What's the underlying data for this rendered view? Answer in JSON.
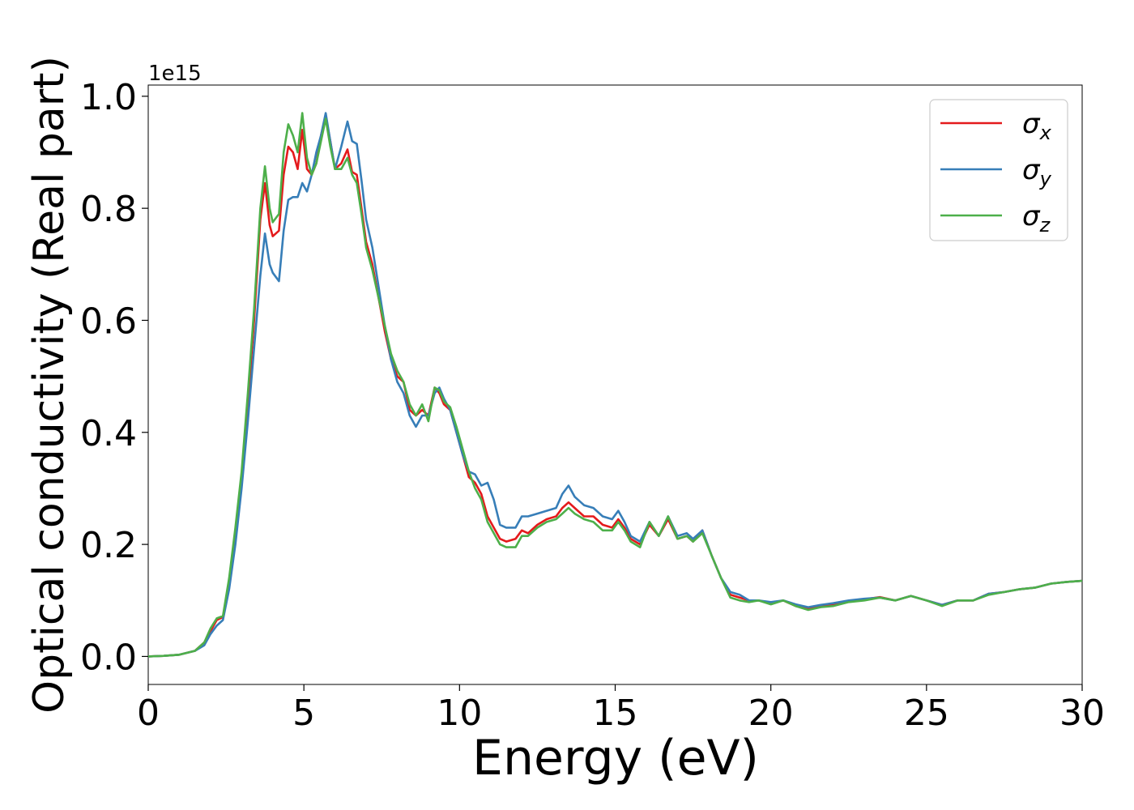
{
  "chart_data": {
    "type": "line",
    "xlabel": "Energy (eV)",
    "ylabel": "Optical conductivity (Real part)",
    "y_offset_text": "1e15",
    "xlim": [
      0,
      30
    ],
    "ylim": [
      -0.05,
      1.02
    ],
    "x_ticks": [
      0,
      5,
      10,
      15,
      20,
      25,
      30
    ],
    "y_ticks": [
      0.0,
      0.2,
      0.4,
      0.6,
      0.8,
      1.0
    ],
    "x_tick_labels": [
      "0",
      "5",
      "10",
      "15",
      "20",
      "25",
      "30"
    ],
    "y_tick_labels": [
      "0.0",
      "0.2",
      "0.4",
      "0.6",
      "0.8",
      "1.0"
    ],
    "legend_position": "top-right",
    "series": [
      {
        "name": "σx",
        "sub": "x",
        "color": "#e41a1c",
        "x": [
          0,
          0.5,
          1.0,
          1.5,
          1.8,
          2.0,
          2.2,
          2.4,
          2.6,
          2.8,
          3.0,
          3.2,
          3.4,
          3.6,
          3.75,
          3.9,
          4.0,
          4.2,
          4.35,
          4.5,
          4.65,
          4.8,
          4.95,
          5.1,
          5.25,
          5.4,
          5.55,
          5.7,
          5.85,
          6.0,
          6.2,
          6.4,
          6.55,
          6.7,
          6.85,
          7.0,
          7.2,
          7.4,
          7.6,
          7.8,
          8.0,
          8.2,
          8.4,
          8.6,
          8.8,
          9.0,
          9.2,
          9.35,
          9.5,
          9.7,
          9.9,
          10.1,
          10.3,
          10.5,
          10.7,
          10.9,
          11.1,
          11.3,
          11.5,
          11.8,
          12.0,
          12.2,
          12.5,
          12.8,
          13.1,
          13.3,
          13.5,
          13.7,
          14.0,
          14.3,
          14.6,
          14.9,
          15.1,
          15.3,
          15.5,
          15.8,
          16.1,
          16.4,
          16.7,
          17.0,
          17.3,
          17.5,
          17.8,
          18.1,
          18.4,
          18.7,
          19.0,
          19.3,
          19.6,
          20.0,
          20.4,
          20.8,
          21.2,
          21.6,
          22.0,
          22.5,
          23.0,
          23.5,
          24.0,
          24.5,
          25.0,
          25.5,
          26.0,
          26.5,
          27.0,
          27.5,
          28.0,
          28.5,
          29.0,
          29.5,
          30.0
        ],
        "y": [
          0.0,
          0.001,
          0.003,
          0.01,
          0.025,
          0.045,
          0.065,
          0.07,
          0.13,
          0.22,
          0.32,
          0.45,
          0.6,
          0.78,
          0.845,
          0.77,
          0.75,
          0.76,
          0.86,
          0.91,
          0.9,
          0.87,
          0.94,
          0.87,
          0.86,
          0.88,
          0.93,
          0.965,
          0.92,
          0.87,
          0.88,
          0.905,
          0.865,
          0.86,
          0.8,
          0.74,
          0.7,
          0.64,
          0.58,
          0.53,
          0.5,
          0.49,
          0.44,
          0.43,
          0.44,
          0.43,
          0.48,
          0.47,
          0.45,
          0.44,
          0.4,
          0.36,
          0.32,
          0.31,
          0.29,
          0.25,
          0.23,
          0.21,
          0.205,
          0.21,
          0.225,
          0.22,
          0.235,
          0.245,
          0.25,
          0.265,
          0.275,
          0.265,
          0.25,
          0.25,
          0.235,
          0.23,
          0.245,
          0.23,
          0.21,
          0.2,
          0.235,
          0.215,
          0.245,
          0.21,
          0.215,
          0.205,
          0.225,
          0.18,
          0.14,
          0.11,
          0.105,
          0.1,
          0.1,
          0.095,
          0.1,
          0.09,
          0.085,
          0.09,
          0.092,
          0.098,
          0.102,
          0.106,
          0.1,
          0.108,
          0.1,
          0.092,
          0.1,
          0.1,
          0.112,
          0.115,
          0.12,
          0.123,
          0.13,
          0.133,
          0.135
        ]
      },
      {
        "name": "σy",
        "sub": "y",
        "color": "#377eb8",
        "x": [
          0,
          0.5,
          1.0,
          1.5,
          1.8,
          2.0,
          2.2,
          2.4,
          2.6,
          2.8,
          3.0,
          3.2,
          3.4,
          3.6,
          3.75,
          3.9,
          4.0,
          4.2,
          4.35,
          4.5,
          4.65,
          4.8,
          4.95,
          5.1,
          5.25,
          5.4,
          5.55,
          5.7,
          5.85,
          6.0,
          6.2,
          6.4,
          6.55,
          6.7,
          6.85,
          7.0,
          7.2,
          7.4,
          7.6,
          7.8,
          8.0,
          8.2,
          8.4,
          8.6,
          8.8,
          9.0,
          9.2,
          9.35,
          9.5,
          9.7,
          9.9,
          10.1,
          10.3,
          10.5,
          10.7,
          10.9,
          11.1,
          11.3,
          11.5,
          11.8,
          12.0,
          12.2,
          12.5,
          12.8,
          13.1,
          13.3,
          13.5,
          13.7,
          14.0,
          14.3,
          14.6,
          14.9,
          15.1,
          15.3,
          15.5,
          15.8,
          16.1,
          16.4,
          16.7,
          17.0,
          17.3,
          17.5,
          17.8,
          18.1,
          18.4,
          18.7,
          19.0,
          19.3,
          19.6,
          20.0,
          20.4,
          20.8,
          21.2,
          21.6,
          22.0,
          22.5,
          23.0,
          23.5,
          24.0,
          24.5,
          25.0,
          25.5,
          26.0,
          26.5,
          27.0,
          27.5,
          28.0,
          28.5,
          29.0,
          29.5,
          30.0
        ],
        "y": [
          0.0,
          0.001,
          0.003,
          0.01,
          0.02,
          0.04,
          0.055,
          0.065,
          0.12,
          0.2,
          0.3,
          0.42,
          0.55,
          0.68,
          0.755,
          0.7,
          0.685,
          0.67,
          0.76,
          0.815,
          0.82,
          0.82,
          0.845,
          0.83,
          0.86,
          0.9,
          0.93,
          0.97,
          0.92,
          0.87,
          0.91,
          0.955,
          0.92,
          0.915,
          0.85,
          0.78,
          0.73,
          0.66,
          0.59,
          0.53,
          0.49,
          0.47,
          0.43,
          0.41,
          0.43,
          0.43,
          0.47,
          0.48,
          0.46,
          0.44,
          0.4,
          0.36,
          0.33,
          0.325,
          0.305,
          0.31,
          0.28,
          0.235,
          0.23,
          0.23,
          0.25,
          0.25,
          0.255,
          0.26,
          0.265,
          0.29,
          0.305,
          0.285,
          0.27,
          0.265,
          0.25,
          0.245,
          0.26,
          0.24,
          0.215,
          0.205,
          0.24,
          0.215,
          0.25,
          0.215,
          0.22,
          0.21,
          0.225,
          0.18,
          0.14,
          0.115,
          0.11,
          0.1,
          0.1,
          0.097,
          0.1,
          0.093,
          0.088,
          0.092,
          0.095,
          0.1,
          0.103,
          0.105,
          0.1,
          0.108,
          0.1,
          0.092,
          0.1,
          0.1,
          0.112,
          0.115,
          0.12,
          0.123,
          0.13,
          0.133,
          0.135
        ]
      },
      {
        "name": "σz",
        "sub": "z",
        "color": "#4daf4a",
        "x": [
          0,
          0.5,
          1.0,
          1.5,
          1.8,
          2.0,
          2.2,
          2.4,
          2.6,
          2.8,
          3.0,
          3.2,
          3.4,
          3.6,
          3.75,
          3.9,
          4.0,
          4.2,
          4.35,
          4.5,
          4.65,
          4.8,
          4.95,
          5.1,
          5.25,
          5.4,
          5.55,
          5.7,
          5.85,
          6.0,
          6.2,
          6.4,
          6.55,
          6.7,
          6.85,
          7.0,
          7.2,
          7.4,
          7.6,
          7.8,
          8.0,
          8.2,
          8.4,
          8.6,
          8.8,
          9.0,
          9.2,
          9.35,
          9.5,
          9.7,
          9.9,
          10.1,
          10.3,
          10.5,
          10.7,
          10.9,
          11.1,
          11.3,
          11.5,
          11.8,
          12.0,
          12.2,
          12.5,
          12.8,
          13.1,
          13.3,
          13.5,
          13.7,
          14.0,
          14.3,
          14.6,
          14.9,
          15.1,
          15.3,
          15.5,
          15.8,
          16.1,
          16.4,
          16.7,
          17.0,
          17.3,
          17.5,
          17.8,
          18.1,
          18.4,
          18.7,
          19.0,
          19.3,
          19.6,
          20.0,
          20.4,
          20.8,
          21.2,
          21.6,
          22.0,
          22.5,
          23.0,
          23.5,
          24.0,
          24.5,
          25.0,
          25.5,
          26.0,
          26.5,
          27.0,
          27.5,
          28.0,
          28.5,
          29.0,
          29.5,
          30.0
        ],
        "y": [
          0.0,
          0.001,
          0.003,
          0.01,
          0.025,
          0.05,
          0.068,
          0.072,
          0.14,
          0.23,
          0.33,
          0.47,
          0.62,
          0.8,
          0.875,
          0.8,
          0.775,
          0.79,
          0.9,
          0.95,
          0.93,
          0.9,
          0.97,
          0.89,
          0.86,
          0.88,
          0.92,
          0.96,
          0.91,
          0.87,
          0.87,
          0.89,
          0.86,
          0.845,
          0.79,
          0.73,
          0.69,
          0.64,
          0.59,
          0.54,
          0.51,
          0.49,
          0.45,
          0.43,
          0.45,
          0.42,
          0.48,
          0.475,
          0.455,
          0.445,
          0.41,
          0.37,
          0.33,
          0.3,
          0.28,
          0.24,
          0.22,
          0.2,
          0.195,
          0.195,
          0.215,
          0.215,
          0.23,
          0.24,
          0.245,
          0.255,
          0.265,
          0.255,
          0.245,
          0.24,
          0.225,
          0.225,
          0.24,
          0.225,
          0.205,
          0.195,
          0.24,
          0.215,
          0.25,
          0.21,
          0.215,
          0.205,
          0.22,
          0.18,
          0.14,
          0.105,
          0.1,
          0.097,
          0.1,
          0.093,
          0.1,
          0.09,
          0.083,
          0.088,
          0.09,
          0.097,
          0.1,
          0.105,
          0.1,
          0.108,
          0.1,
          0.09,
          0.1,
          0.1,
          0.11,
          0.115,
          0.12,
          0.123,
          0.13,
          0.133,
          0.135
        ]
      }
    ]
  }
}
